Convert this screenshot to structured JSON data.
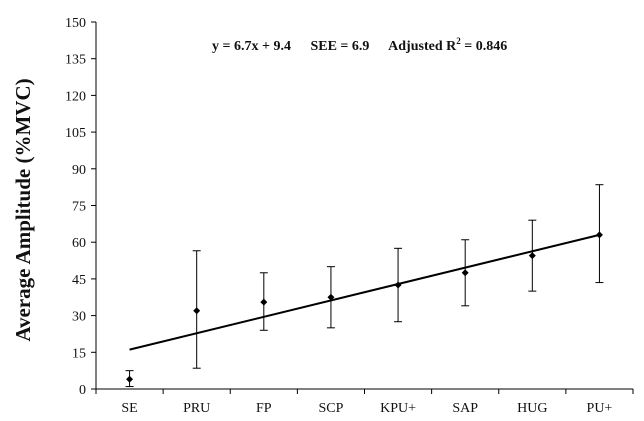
{
  "chart_data": {
    "type": "scatter",
    "title": "",
    "xlabel": "",
    "ylabel": "Average Amplitude (%MVC)",
    "ylim": [
      0,
      150
    ],
    "yticks": [
      0,
      15,
      30,
      45,
      60,
      75,
      90,
      105,
      120,
      135,
      150
    ],
    "categories": [
      "SE",
      "PRU",
      "FP",
      "SCP",
      "KPU+",
      "SAP",
      "HUG",
      "PU+"
    ],
    "series": [
      {
        "values": [
          4,
          32,
          35.5,
          37.5,
          42.5,
          47.5,
          54.5,
          63
        ],
        "error_low": [
          1,
          8.5,
          24,
          25,
          27.5,
          34,
          40,
          43.5
        ],
        "error_high": [
          7.5,
          56.5,
          47.5,
          50,
          57.5,
          61,
          69,
          83.5
        ]
      }
    ],
    "trendline": {
      "slope": 6.7,
      "intercept": 9.4
    },
    "annotation": {
      "equation": "y = 6.7x + 9.4",
      "see": "SEE = 6.9",
      "r2_prefix": "Adjusted R",
      "r2_sup": "2",
      "r2_suffix": " = 0.846"
    },
    "grid": false,
    "legend": "none"
  }
}
